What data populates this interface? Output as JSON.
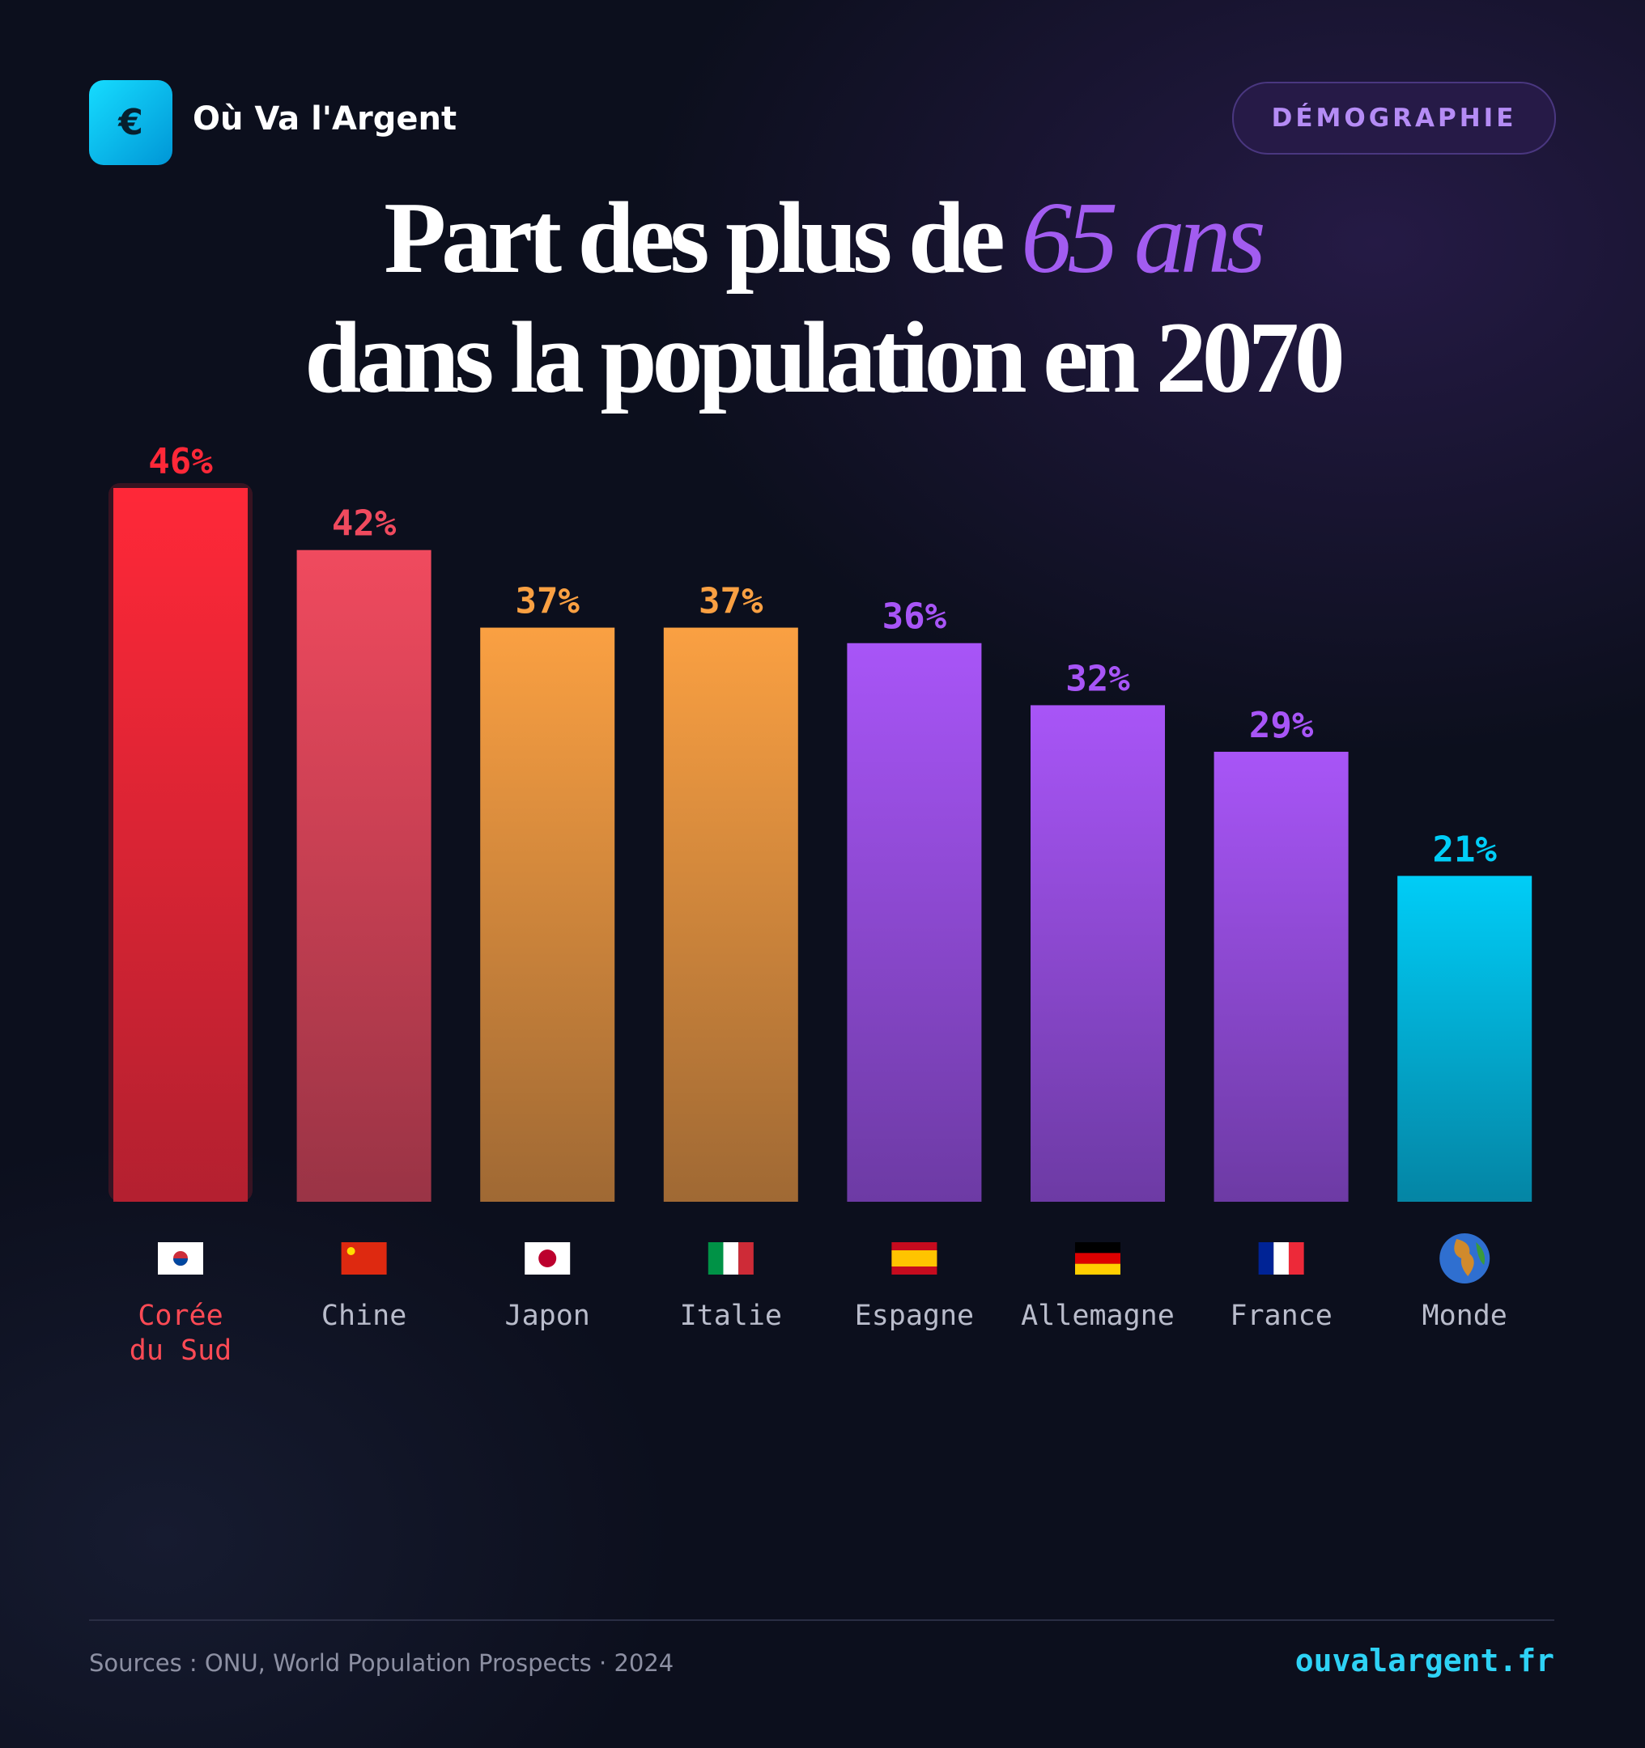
{
  "header": {
    "logo": "€",
    "brand": "Où Va l'Argent",
    "tag": "DÉMOGRAPHIE"
  },
  "chart_data": {
    "type": "bar",
    "title": {
      "line1": "Part des plus de",
      "highlight": "65 ans",
      "line2": "dans la population en 2070"
    },
    "categories": [
      "Corée du Sud",
      "Chine",
      "Japon",
      "Italie",
      "Espagne",
      "Allemagne",
      "France",
      "Monde"
    ],
    "values": [
      46,
      42,
      37,
      37,
      36,
      32,
      29,
      21
    ],
    "value_labels": [
      "46%",
      "42%",
      "37%",
      "37%",
      "36%",
      "32%",
      "29%",
      "21%"
    ],
    "colors": [
      "#ff2838",
      "#f04a5e",
      "#faa042",
      "#faa042",
      "#a855f7",
      "#a855f7",
      "#a855f7",
      "#00cdf7"
    ],
    "label_colors": [
      "#ff4a55",
      "#b9bccb",
      "#b9bccb",
      "#b9bccb",
      "#b9bccb",
      "#b9bccb",
      "#b9bccb",
      "#b9bccb"
    ]
  },
  "footer": {
    "source": "Sources : ONU, World Population Prospects · 2024",
    "site": "ouvalargent.fr"
  }
}
